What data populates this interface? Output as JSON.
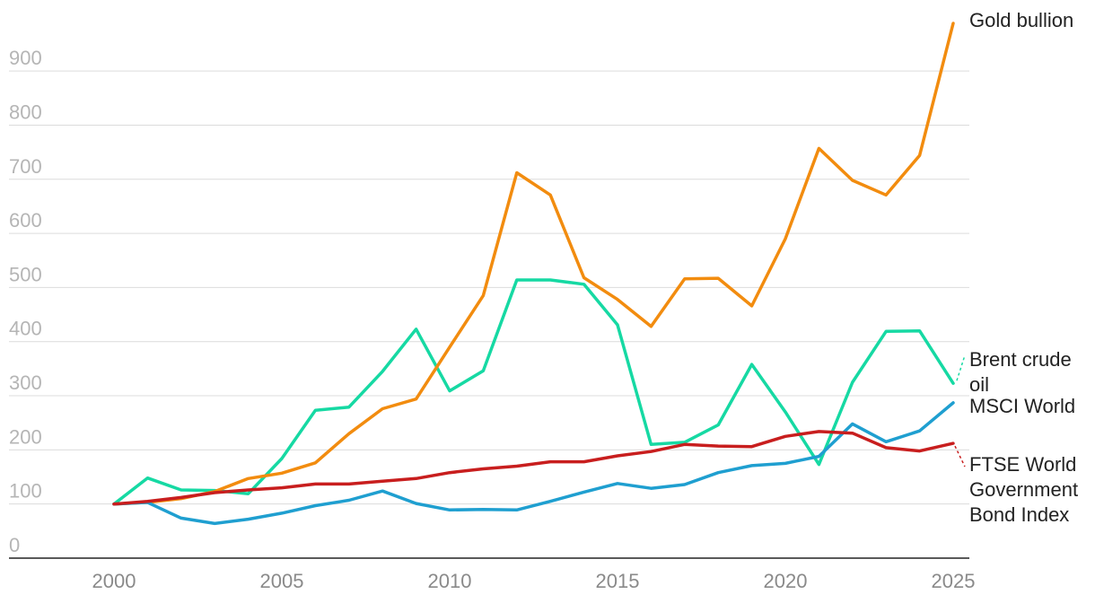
{
  "chart_data": {
    "type": "line",
    "title": "",
    "xlabel": "",
    "ylabel": "",
    "xlim": [
      2000,
      2025
    ],
    "ylim": [
      0,
      1000
    ],
    "yticks": [
      0,
      100,
      200,
      300,
      400,
      500,
      600,
      700,
      800,
      900
    ],
    "xticks": [
      2000,
      2005,
      2010,
      2015,
      2020,
      2025
    ],
    "grid": true,
    "legend": "direct labels at right end of lines",
    "x": [
      2000,
      2001,
      2002,
      2003,
      2004,
      2005,
      2006,
      2007,
      2008,
      2009,
      2010,
      2011,
      2012,
      2013,
      2014,
      2015,
      2016,
      2017,
      2018,
      2019,
      2020,
      2021,
      2022,
      2023,
      2024,
      2025
    ],
    "series": [
      {
        "name": "Gold bullion",
        "label_lines": [
          "Gold bullion"
        ],
        "color": "#f28c0f",
        "values": [
          100,
          103,
          110,
          123,
          147,
          157,
          176,
          230,
          276,
          294,
          390,
          485,
          712,
          671,
          518,
          478,
          428,
          516,
          517,
          466,
          590,
          757,
          698,
          671,
          744,
          988
        ]
      },
      {
        "name": "Brent crude oil",
        "label_lines": [
          "Brent crude",
          "oil"
        ],
        "color": "#16d9a3",
        "values": [
          100,
          148,
          126,
          125,
          119,
          184,
          273,
          279,
          345,
          423,
          309,
          346,
          514,
          514,
          506,
          431,
          210,
          214,
          246,
          358,
          270,
          173,
          325,
          419,
          420,
          323
        ]
      },
      {
        "name": "MSCI World",
        "label_lines": [
          "MSCI World"
        ],
        "color": "#1f9fd0",
        "values": [
          100,
          103,
          74,
          64,
          72,
          83,
          97,
          107,
          124,
          101,
          89,
          90,
          89,
          105,
          122,
          138,
          129,
          136,
          158,
          171,
          175,
          188,
          248,
          215,
          235,
          287
        ]
      },
      {
        "name": "FTSE World Government Bond Index",
        "label_lines": [
          "FTSE World",
          "Government",
          "Bond Index"
        ],
        "color": "#c81e1e",
        "values": [
          100,
          105,
          112,
          121,
          126,
          130,
          137,
          137,
          142,
          147,
          158,
          165,
          170,
          178,
          178,
          189,
          197,
          210,
          207,
          206,
          225,
          234,
          231,
          204,
          198,
          212
        ]
      }
    ]
  }
}
